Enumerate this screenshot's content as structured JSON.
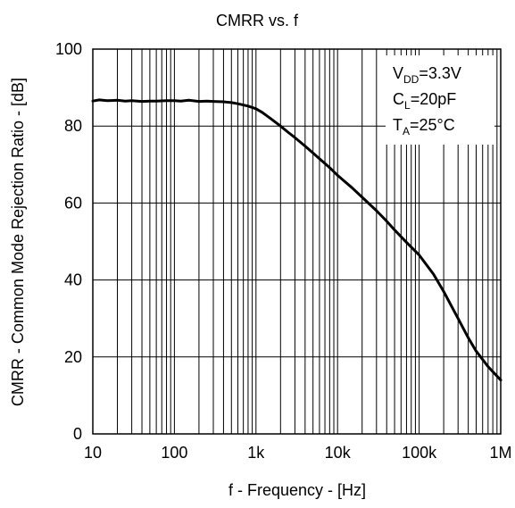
{
  "chart_data": {
    "type": "line",
    "title": "CMRR vs. f",
    "xlabel": "f - Frequency - [Hz]",
    "ylabel": "CMRR - Common Mode Rejection Ratio - [dB]",
    "x_scale": "log",
    "xlim": [
      10,
      1000000
    ],
    "ylim": [
      0,
      100
    ],
    "x_ticks": [
      {
        "value": 10,
        "label": "10"
      },
      {
        "value": 100,
        "label": "100"
      },
      {
        "value": 1000,
        "label": "1k"
      },
      {
        "value": 10000,
        "label": "10k"
      },
      {
        "value": 100000,
        "label": "100k"
      },
      {
        "value": 1000000,
        "label": "1M"
      }
    ],
    "y_ticks": [
      {
        "value": 0,
        "label": "0"
      },
      {
        "value": 20,
        "label": "20"
      },
      {
        "value": 40,
        "label": "40"
      },
      {
        "value": 60,
        "label": "60"
      },
      {
        "value": 80,
        "label": "80"
      },
      {
        "value": 100,
        "label": "100"
      }
    ],
    "grid": true,
    "annotation": {
      "lines": [
        {
          "main": "V",
          "sub": "DD",
          "rest": "=3.3V"
        },
        {
          "main": "C",
          "sub": "L",
          "rest": "=20pF"
        },
        {
          "main": "T",
          "sub": "A",
          "rest": "=25°C"
        }
      ],
      "placement": "top-right"
    },
    "series": [
      {
        "color": "#000000",
        "x": [
          10,
          12,
          15,
          20,
          25,
          30,
          40,
          50,
          60,
          80,
          100,
          120,
          150,
          200,
          250,
          300,
          400,
          500,
          600,
          800,
          1000,
          1200,
          1500,
          2000,
          2500,
          3000,
          4000,
          5000,
          6000,
          8000,
          10000,
          15000,
          20000,
          30000,
          40000,
          50000,
          70000,
          100000,
          150000,
          200000,
          300000,
          400000,
          500000,
          700000,
          1000000
        ],
        "y": [
          86.5,
          86.8,
          86.6,
          86.7,
          86.5,
          86.6,
          86.4,
          86.5,
          86.5,
          86.6,
          86.6,
          86.5,
          86.7,
          86.4,
          86.5,
          86.4,
          86.3,
          86.1,
          85.8,
          85.2,
          84.5,
          83.5,
          82.0,
          80.0,
          78.3,
          77.0,
          74.8,
          73.0,
          71.5,
          69.2,
          67.2,
          64.0,
          61.5,
          58.0,
          55.3,
          53.0,
          49.8,
          46.5,
          41.5,
          37.0,
          30.0,
          25.0,
          21.5,
          17.5,
          14.0
        ]
      }
    ]
  }
}
